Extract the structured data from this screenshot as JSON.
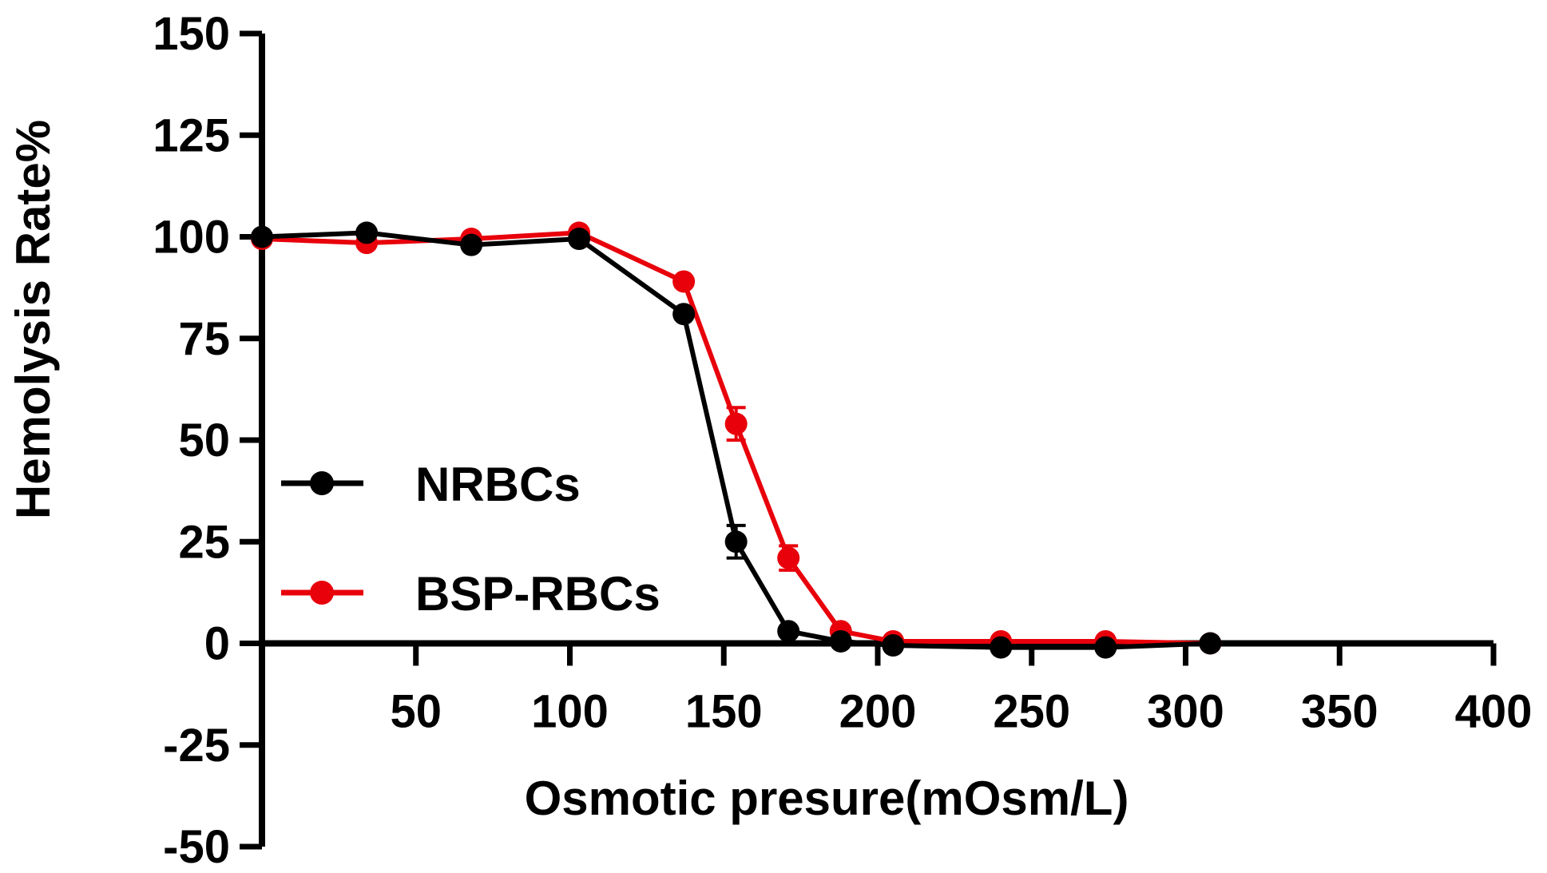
{
  "chart_data": {
    "type": "line",
    "xlabel": "Osmotic presure(mOsm/L)",
    "ylabel": "Hemolysis Rate%",
    "xlim": [
      0,
      400
    ],
    "ylim": [
      -50,
      150
    ],
    "x_ticks": [
      50,
      100,
      150,
      200,
      250,
      300,
      350,
      400
    ],
    "y_ticks": [
      -50,
      -25,
      0,
      25,
      50,
      75,
      100,
      125,
      150
    ],
    "grid": false,
    "legend_position": "left-middle",
    "x": [
      0,
      34,
      68,
      103,
      137,
      154,
      171,
      188,
      205,
      240,
      274,
      308
    ],
    "series": [
      {
        "name": "NRBCs",
        "color": "#000000",
        "values": [
          100,
          101,
          98,
          99.5,
          81,
          25,
          3,
          0.5,
          -0.5,
          -1,
          -1,
          0
        ],
        "errors": [
          0.5,
          0.5,
          0.5,
          0.5,
          1,
          4,
          1,
          0.5,
          0.3,
          0.3,
          0.3,
          0.2
        ]
      },
      {
        "name": "BSP-RBCs",
        "color": "#e8000b",
        "values": [
          99.5,
          98.5,
          99.5,
          101,
          89,
          54,
          21,
          3,
          0.5,
          0.5,
          0.5,
          0
        ],
        "errors": [
          0.5,
          0.5,
          0.5,
          0.5,
          1,
          4,
          3,
          1,
          0.3,
          0.3,
          0.3,
          0.2
        ]
      }
    ]
  }
}
